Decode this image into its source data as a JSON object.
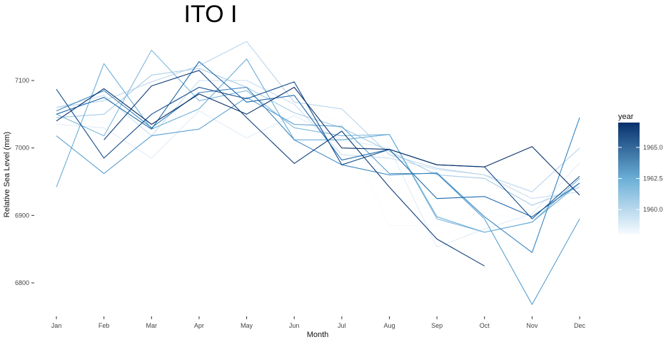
{
  "chart_data": {
    "type": "line",
    "title": "ITO I",
    "xlabel": "Month",
    "ylabel": "Relative Sea Level (mm)",
    "categories": [
      "Jan",
      "Feb",
      "Mar",
      "Apr",
      "May",
      "Jun",
      "Jul",
      "Aug",
      "Sep",
      "Oct",
      "Nov",
      "Dec"
    ],
    "yticks": [
      6800,
      6900,
      7000,
      7100
    ],
    "ytick_labels": [
      "6800",
      "6900",
      "7000",
      "7100"
    ],
    "ylim": [
      6755,
      7165
    ],
    "grid": false,
    "legend": {
      "title": "year",
      "position": "right",
      "range": [
        1958,
        1967
      ],
      "ticks": [
        1960.0,
        1962.5,
        1965.0
      ],
      "tick_labels": [
        "1960.0",
        "1962.5",
        "1965.0"
      ],
      "color_low": "#f7fbff",
      "color_high": "#08306b"
    },
    "series": [
      {
        "year": 1958,
        "values": [
          7050,
          7038,
          7015,
          7075,
          7098,
          7068,
          7035,
          6885,
          6885,
          6905,
          6890,
          6920
        ]
      },
      {
        "year": 1959,
        "values": [
          7035,
          7030,
          6985,
          7055,
          7015,
          7048,
          7012,
          7000,
          6853,
          6880,
          6902,
          6978
        ]
      },
      {
        "year": 1960,
        "values": [
          7060,
          7078,
          7018,
          7100,
          7100,
          7065,
          6990,
          6985,
          6968,
          6960,
          6925,
          6935
        ]
      },
      {
        "year": 1960.5,
        "values": [
          7060,
          7070,
          7098,
          7122,
          7158,
          7068,
          7058,
          6990,
          6970,
          6960,
          6935,
          7000
        ]
      },
      {
        "year": 1961,
        "values": [
          7045,
          7050,
          7108,
          7118,
          7090,
          7052,
          7030,
          6995,
          6960,
          6955,
          6915,
          6942
        ]
      },
      {
        "year": 1962,
        "values": [
          7050,
          7018,
          7145,
          7070,
          7085,
          7030,
          7018,
          7020,
          6895,
          6875,
          6890,
          6955
        ]
      },
      {
        "year": 1962.5,
        "values": [
          6942,
          7125,
          7028,
          7058,
          7132,
          7012,
          7012,
          7020,
          6898,
          6875,
          6890,
          6948
        ]
      },
      {
        "year": 1963,
        "values": [
          7018,
          6962,
          7018,
          7028,
          7075,
          7035,
          7032,
          6962,
          6962,
          6895,
          6768,
          6895
        ]
      },
      {
        "year": 1964,
        "values": [
          7055,
          7085,
          7030,
          7082,
          7090,
          7012,
          6975,
          6960,
          6963,
          6898,
          6845,
          7045
        ]
      },
      {
        "year": 1965,
        "values": [
          7050,
          7075,
          7028,
          7128,
          7068,
          7078,
          6982,
          6998,
          6925,
          6928,
          6898,
          6948
        ]
      },
      {
        "year": 1966,
        "values": [
          7087,
          6985,
          7050,
          7090,
          7073,
          7098,
          6975,
          6998,
          6975,
          6972,
          6895,
          6958
        ]
      },
      {
        "year": 1966.5,
        "values": [
          null,
          7012,
          7092,
          7115,
          7045,
          6977,
          7025,
          6942,
          6865,
          6825,
          null,
          null
        ]
      },
      {
        "year": 1967,
        "values": [
          7040,
          7088,
          7035,
          7080,
          7050,
          7090,
          7000,
          6998,
          6975,
          6972,
          7002,
          6930
        ]
      }
    ]
  }
}
